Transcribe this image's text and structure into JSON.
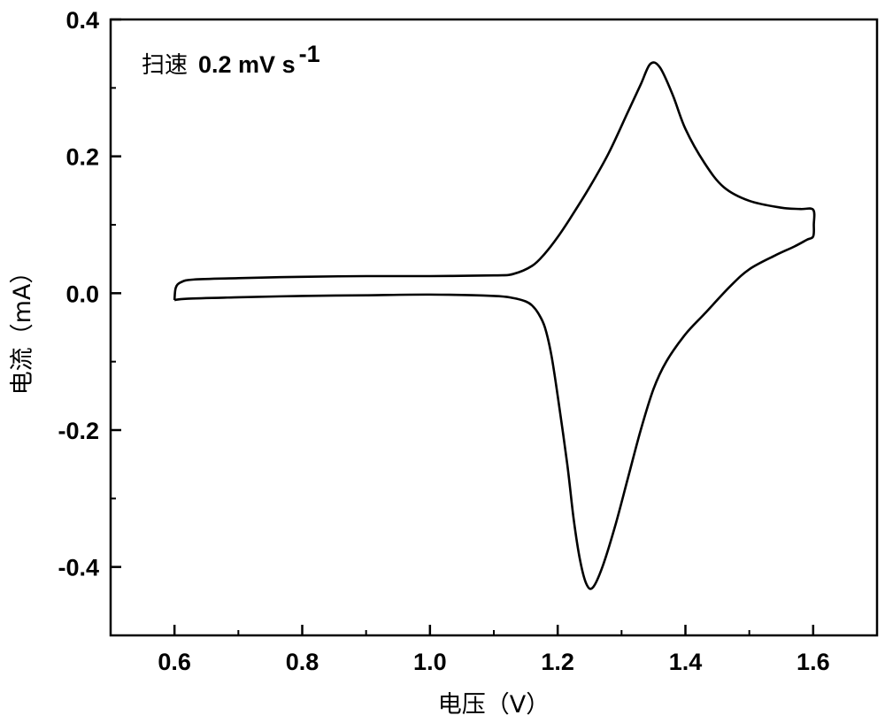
{
  "chart_data": {
    "type": "line",
    "xlabel": "电压（V）",
    "ylabel": "电流（mA）",
    "xlim": [
      0.5,
      1.7
    ],
    "ylim": [
      -0.5,
      0.4
    ],
    "xticks": [
      0.6,
      0.8,
      1.0,
      1.2,
      1.4,
      1.6
    ],
    "xtick_labels": [
      "0.6",
      "0.8",
      "1.0",
      "1.2",
      "1.4",
      "1.6"
    ],
    "yticks": [
      -0.4,
      -0.2,
      0.0,
      0.2,
      0.4
    ],
    "ytick_labels": [
      "-0.4",
      "-0.2",
      "0.0",
      "0.2",
      "0.4"
    ],
    "annotation": {
      "prefix": "扫速",
      "text": "0.2 mV s",
      "superscript": "-1"
    },
    "grid": false,
    "series": [
      {
        "color": "#000000",
        "x": [
          0.6,
          0.602,
          0.61,
          0.63,
          0.7,
          0.8,
          0.9,
          1.0,
          1.1,
          1.13,
          1.16,
          1.18,
          1.2,
          1.22,
          1.25,
          1.28,
          1.31,
          1.33,
          1.345,
          1.36,
          1.38,
          1.4,
          1.43,
          1.46,
          1.5,
          1.55,
          1.58,
          1.6,
          1.601,
          1.6,
          1.59,
          1.57,
          1.54,
          1.5,
          1.47,
          1.43,
          1.4,
          1.37,
          1.35,
          1.33,
          1.31,
          1.29,
          1.27,
          1.255,
          1.245,
          1.235,
          1.225,
          1.215,
          1.2,
          1.19,
          1.18,
          1.17,
          1.16,
          1.15,
          1.13,
          1.1,
          1.0,
          0.9,
          0.8,
          0.7,
          0.62,
          0.6
        ],
        "y": [
          -0.01,
          0.008,
          0.016,
          0.02,
          0.022,
          0.024,
          0.025,
          0.025,
          0.026,
          0.028,
          0.04,
          0.058,
          0.082,
          0.11,
          0.155,
          0.205,
          0.265,
          0.305,
          0.335,
          0.33,
          0.29,
          0.24,
          0.19,
          0.155,
          0.135,
          0.125,
          0.123,
          0.122,
          0.1,
          0.083,
          0.078,
          0.068,
          0.055,
          0.035,
          0.01,
          -0.03,
          -0.06,
          -0.1,
          -0.14,
          -0.2,
          -0.27,
          -0.34,
          -0.4,
          -0.43,
          -0.425,
          -0.39,
          -0.33,
          -0.25,
          -0.15,
          -0.09,
          -0.05,
          -0.03,
          -0.018,
          -0.012,
          -0.007,
          -0.004,
          -0.002,
          -0.003,
          -0.004,
          -0.006,
          -0.008,
          -0.01
        ]
      }
    ]
  }
}
